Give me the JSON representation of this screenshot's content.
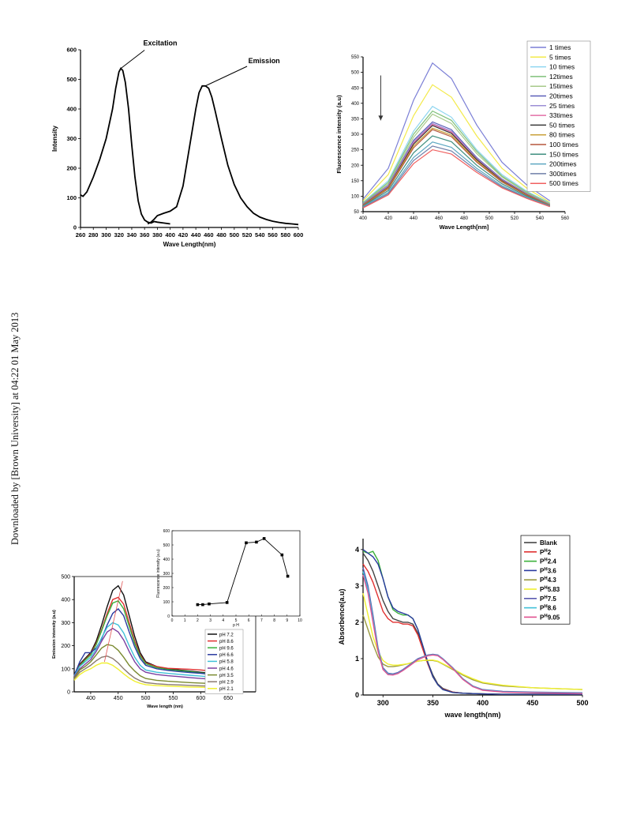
{
  "watermark": "Downloaded by [Brown University] at 04:22 01 May 2013",
  "chart_data": [
    {
      "type": "line",
      "xlabel": "Wave Length(nm)",
      "ylabel": "Intensity",
      "xlim": [
        260,
        600
      ],
      "ylim": [
        0,
        600
      ],
      "xticks": [
        "260",
        "280",
        "300",
        "320",
        "340",
        "360",
        "380",
        "400",
        "420",
        "440",
        "460",
        "480",
        "500",
        "520",
        "540",
        "560",
        "580",
        "600"
      ],
      "yticks": [
        "0",
        "100",
        "200",
        "300",
        "400",
        "500",
        "600"
      ],
      "annotations": [
        "Excitation",
        "Emission"
      ],
      "series": [
        {
          "name": "Excitation",
          "color": "#000000",
          "x": [
            260,
            264,
            270,
            280,
            290,
            300,
            310,
            315,
            320,
            323,
            326,
            330,
            335,
            340,
            345,
            350,
            355,
            360,
            365,
            370,
            375,
            380,
            390,
            400
          ],
          "y": [
            110,
            105,
            120,
            170,
            230,
            300,
            400,
            470,
            525,
            537,
            530,
            490,
            400,
            280,
            170,
            90,
            45,
            25,
            18,
            15,
            20,
            18,
            15,
            12
          ]
        },
        {
          "name": "Emission",
          "color": "#000000",
          "x": [
            365,
            370,
            375,
            380,
            390,
            400,
            410,
            420,
            430,
            440,
            445,
            450,
            455,
            460,
            465,
            470,
            480,
            490,
            500,
            510,
            520,
            530,
            540,
            550,
            560,
            570,
            580,
            590,
            600
          ],
          "y": [
            12,
            18,
            28,
            40,
            48,
            55,
            70,
            140,
            270,
            400,
            455,
            478,
            478,
            470,
            440,
            395,
            300,
            210,
            145,
            100,
            70,
            48,
            35,
            27,
            21,
            17,
            14,
            12,
            10
          ]
        }
      ]
    },
    {
      "type": "line",
      "xlabel": "Wave Length[nm]",
      "ylabel": "Fluorescence intensity (a.u)",
      "xlim": [
        400,
        560
      ],
      "ylim": [
        50,
        550
      ],
      "xticks": [
        "400",
        "420",
        "440",
        "460",
        "480",
        "500",
        "520",
        "540",
        "560"
      ],
      "yticks": [
        "50",
        "100",
        "150",
        "200",
        "250",
        "300",
        "350",
        "400",
        "450",
        "500",
        "550"
      ],
      "legend_position": "top-right",
      "x": [
        400,
        420,
        440,
        455,
        470,
        490,
        510,
        530,
        548
      ],
      "series": [
        {
          "name": "1 times",
          "color": "#7b7fd6",
          "values": [
            90,
            190,
            410,
            530,
            480,
            330,
            210,
            135,
            85
          ]
        },
        {
          "name": "5 times",
          "color": "#f3ea4a",
          "values": [
            85,
            170,
            360,
            460,
            420,
            295,
            190,
            125,
            80
          ]
        },
        {
          "name": "10 times",
          "color": "#8fd6f0",
          "values": [
            80,
            150,
            310,
            390,
            355,
            250,
            170,
            115,
            78
          ]
        },
        {
          "name": "12times",
          "color": "#7fc07a",
          "values": [
            78,
            145,
            300,
            375,
            345,
            245,
            165,
            112,
            76
          ]
        },
        {
          "name": "15times",
          "color": "#a7c98a",
          "values": [
            76,
            140,
            290,
            365,
            335,
            238,
            162,
            110,
            75
          ]
        },
        {
          "name": "20times",
          "color": "#5b5fb8",
          "values": [
            75,
            135,
            280,
            340,
            315,
            225,
            155,
            107,
            73
          ]
        },
        {
          "name": "25 times",
          "color": "#9c8fd6",
          "values": [
            74,
            133,
            275,
            335,
            310,
            222,
            153,
            106,
            72
          ]
        },
        {
          "name": "33times",
          "color": "#e36fa7",
          "values": [
            73,
            131,
            272,
            332,
            307,
            220,
            152,
            105,
            72
          ]
        },
        {
          "name": "50 times",
          "color": "#3a3a3a",
          "values": [
            72,
            129,
            268,
            328,
            303,
            218,
            150,
            104,
            71
          ]
        },
        {
          "name": "80 times",
          "color": "#c9a13a",
          "values": [
            71,
            127,
            262,
            320,
            297,
            214,
            148,
            103,
            71
          ]
        },
        {
          "name": "100 times",
          "color": "#b5573d",
          "values": [
            70,
            124,
            256,
            315,
            292,
            210,
            146,
            102,
            70
          ]
        },
        {
          "name": "150 times",
          "color": "#3f8f7f",
          "values": [
            68,
            118,
            240,
            295,
            276,
            200,
            140,
            99,
            69
          ]
        },
        {
          "name": "200times",
          "color": "#5ea8c2",
          "values": [
            66,
            112,
            225,
            275,
            258,
            190,
            134,
            96,
            68
          ]
        },
        {
          "name": "300times",
          "color": "#6f7fa8",
          "values": [
            64,
            108,
            215,
            262,
            246,
            183,
            130,
            94,
            67
          ]
        },
        {
          "name": "500 times",
          "color": "#f06060",
          "values": [
            62,
            104,
            205,
            250,
            236,
            177,
            127,
            92,
            66
          ]
        }
      ]
    },
    {
      "type": "line",
      "xlabel": "Wave length (nm)",
      "ylabel": "Emission intensity (a.u)",
      "xlim": [
        370,
        700
      ],
      "ylim": [
        0,
        500
      ],
      "xticks": [
        "400",
        "450",
        "500",
        "550",
        "600",
        "650"
      ],
      "yticks": [
        "0",
        "100",
        "200",
        "300",
        "400",
        "500"
      ],
      "legend_position": "bottom-right",
      "x": [
        370,
        380,
        390,
        400,
        410,
        420,
        430,
        440,
        450,
        460,
        470,
        480,
        490,
        500,
        520,
        540,
        560,
        580,
        600,
        620,
        640
      ],
      "series": [
        {
          "name": "pH 7.2",
          "color": "#111111",
          "values": [
            75,
            120,
            145,
            170,
            220,
            290,
            370,
            440,
            460,
            420,
            330,
            240,
            170,
            130,
            110,
            100,
            95,
            90,
            85,
            80,
            75
          ]
        },
        {
          "name": "pH 8.6",
          "color": "#e03030",
          "values": [
            72,
            115,
            140,
            165,
            210,
            270,
            340,
            400,
            410,
            380,
            300,
            220,
            160,
            125,
            110,
            102,
            100,
            98,
            95,
            90,
            82
          ]
        },
        {
          "name": "pH 9.6",
          "color": "#3ab03a",
          "values": [
            70,
            112,
            138,
            160,
            205,
            265,
            330,
            385,
            395,
            360,
            285,
            210,
            155,
            122,
            105,
            97,
            92,
            88,
            82,
            78,
            72
          ]
        },
        {
          "name": "pH 6.6",
          "color": "#2a3aa0",
          "values": [
            70,
            130,
            170,
            170,
            190,
            230,
            290,
            340,
            360,
            330,
            260,
            195,
            145,
            115,
            100,
            93,
            88,
            84,
            80,
            75,
            70
          ]
        },
        {
          "name": "pH 5.8",
          "color": "#40c0d8",
          "values": [
            68,
            110,
            130,
            150,
            185,
            235,
            280,
            300,
            290,
            255,
            200,
            150,
            115,
            95,
            85,
            80,
            76,
            72,
            68,
            64,
            60
          ]
        },
        {
          "name": "pH 4.6",
          "color": "#7a3fa0",
          "values": [
            65,
            100,
            120,
            140,
            175,
            220,
            260,
            275,
            260,
            225,
            175,
            130,
            100,
            85,
            75,
            70,
            66,
            62,
            58,
            55,
            52
          ]
        },
        {
          "name": "pH 3.5",
          "color": "#7a8a30",
          "values": [
            60,
            95,
            110,
            130,
            160,
            190,
            205,
            200,
            180,
            150,
            115,
            90,
            70,
            58,
            50,
            46,
            43,
            40,
            38,
            36,
            34
          ]
        },
        {
          "name": "pH 2.9",
          "color": "#8a7a70",
          "values": [
            55,
            85,
            100,
            115,
            135,
            150,
            155,
            145,
            125,
            100,
            78,
            60,
            48,
            40,
            35,
            32,
            30,
            28,
            26,
            25,
            24
          ]
        },
        {
          "name": "pH 2.1",
          "color": "#f0f030",
          "values": [
            50,
            75,
            90,
            100,
            115,
            125,
            125,
            115,
            98,
            78,
            60,
            46,
            37,
            31,
            27,
            25,
            23,
            21,
            20,
            19,
            18
          ]
        }
      ],
      "inset": {
        "type": "line",
        "xlabel": "p H",
        "ylabel": "Fluorescence intensity (a.u)",
        "xlim": [
          0,
          10
        ],
        "ylim": [
          0,
          600
        ],
        "xticks": [
          "0",
          "1",
          "2",
          "3",
          "4",
          "5",
          "6",
          "7",
          "8",
          "9",
          "10"
        ],
        "yticks": [
          "0",
          "100",
          "200",
          "300",
          "400",
          "500",
          "600"
        ],
        "x": [
          2.0,
          2.4,
          2.9,
          4.3,
          5.8,
          6.6,
          7.2,
          8.6,
          9.05
        ],
        "y": [
          80,
          80,
          85,
          95,
          515,
          520,
          545,
          430,
          280
        ]
      }
    },
    {
      "type": "line",
      "xlabel": "wave length(nm)",
      "ylabel": "Absorbence(a.u)",
      "xlim": [
        280,
        500
      ],
      "ylim": [
        0,
        4.3
      ],
      "xticks": [
        "300",
        "350",
        "400",
        "450",
        "500"
      ],
      "yticks": [
        "0",
        "1",
        "2",
        "3",
        "4"
      ],
      "legend_position": "top-right",
      "x": [
        280,
        285,
        290,
        295,
        300,
        305,
        310,
        315,
        320,
        325,
        330,
        335,
        340,
        345,
        350,
        355,
        360,
        370,
        380,
        390,
        400,
        420,
        450,
        480,
        500
      ],
      "series": [
        {
          "name": "Blank",
          "color": "#444444",
          "values": [
            3.9,
            3.7,
            3.4,
            3.0,
            2.6,
            2.3,
            2.1,
            2.05,
            2.0,
            2.0,
            1.95,
            1.7,
            1.3,
            0.9,
            0.55,
            0.3,
            0.18,
            0.08,
            0.05,
            0.04,
            0.03,
            0.02,
            0.02,
            0.02,
            0.02
          ]
        },
        {
          "name": "P^H2",
          "color": "#e03030",
          "values": [
            3.6,
            3.4,
            3.1,
            2.7,
            2.3,
            2.1,
            2.0,
            2.0,
            1.95,
            1.95,
            1.9,
            1.65,
            1.25,
            0.85,
            0.5,
            0.28,
            0.16,
            0.08,
            0.05,
            0.04,
            0.03,
            0.02,
            0.02,
            0.02,
            0.02
          ]
        },
        {
          "name": "P^H2.4",
          "color": "#3ab03a",
          "values": [
            3.95,
            3.9,
            3.95,
            3.7,
            3.2,
            2.7,
            2.35,
            2.25,
            2.2,
            2.2,
            2.1,
            1.8,
            1.35,
            0.9,
            0.5,
            0.28,
            0.15,
            0.07,
            0.05,
            0.04,
            0.03,
            0.02,
            0.02,
            0.02,
            0.02
          ]
        },
        {
          "name": "P^H3.6",
          "color": "#2a3aa0",
          "values": [
            4.0,
            3.9,
            3.8,
            3.6,
            3.2,
            2.7,
            2.4,
            2.3,
            2.25,
            2.2,
            2.1,
            1.8,
            1.35,
            0.9,
            0.5,
            0.28,
            0.15,
            0.07,
            0.05,
            0.04,
            0.03,
            0.02,
            0.02,
            0.02,
            0.02
          ]
        },
        {
          "name": "P^H4.3",
          "color": "#9a9a40",
          "values": [
            2.2,
            1.8,
            1.4,
            1.05,
            0.85,
            0.78,
            0.78,
            0.8,
            0.83,
            0.86,
            0.9,
            0.93,
            0.95,
            0.95,
            0.95,
            0.92,
            0.85,
            0.7,
            0.55,
            0.42,
            0.33,
            0.25,
            0.2,
            0.17,
            0.15
          ]
        },
        {
          "name": "P^H5.83",
          "color": "#f0f030",
          "values": [
            2.8,
            2.2,
            1.6,
            1.2,
            0.95,
            0.85,
            0.82,
            0.82,
            0.84,
            0.86,
            0.9,
            0.93,
            0.95,
            0.96,
            0.96,
            0.93,
            0.86,
            0.72,
            0.57,
            0.45,
            0.35,
            0.27,
            0.2,
            0.17,
            0.15
          ]
        },
        {
          "name": "P^H7.5",
          "color": "#5a5ab0",
          "values": [
            3.5,
            3.0,
            2.2,
            1.3,
            0.75,
            0.6,
            0.58,
            0.62,
            0.7,
            0.8,
            0.9,
            1.0,
            1.05,
            1.1,
            1.12,
            1.1,
            1.0,
            0.75,
            0.45,
            0.25,
            0.15,
            0.1,
            0.08,
            0.07,
            0.06
          ]
        },
        {
          "name": "P^H8.6",
          "color": "#40c0d8",
          "values": [
            3.4,
            2.9,
            2.1,
            1.25,
            0.72,
            0.58,
            0.56,
            0.6,
            0.68,
            0.78,
            0.88,
            0.98,
            1.04,
            1.09,
            1.11,
            1.09,
            0.99,
            0.74,
            0.44,
            0.24,
            0.14,
            0.09,
            0.07,
            0.06,
            0.05
          ]
        },
        {
          "name": "P^H9.05",
          "color": "#e05090",
          "values": [
            3.3,
            2.8,
            2.0,
            1.2,
            0.7,
            0.56,
            0.55,
            0.59,
            0.67,
            0.77,
            0.87,
            0.97,
            1.03,
            1.08,
            1.1,
            1.08,
            0.98,
            0.73,
            0.43,
            0.23,
            0.13,
            0.08,
            0.06,
            0.05,
            0.04
          ]
        }
      ]
    }
  ]
}
